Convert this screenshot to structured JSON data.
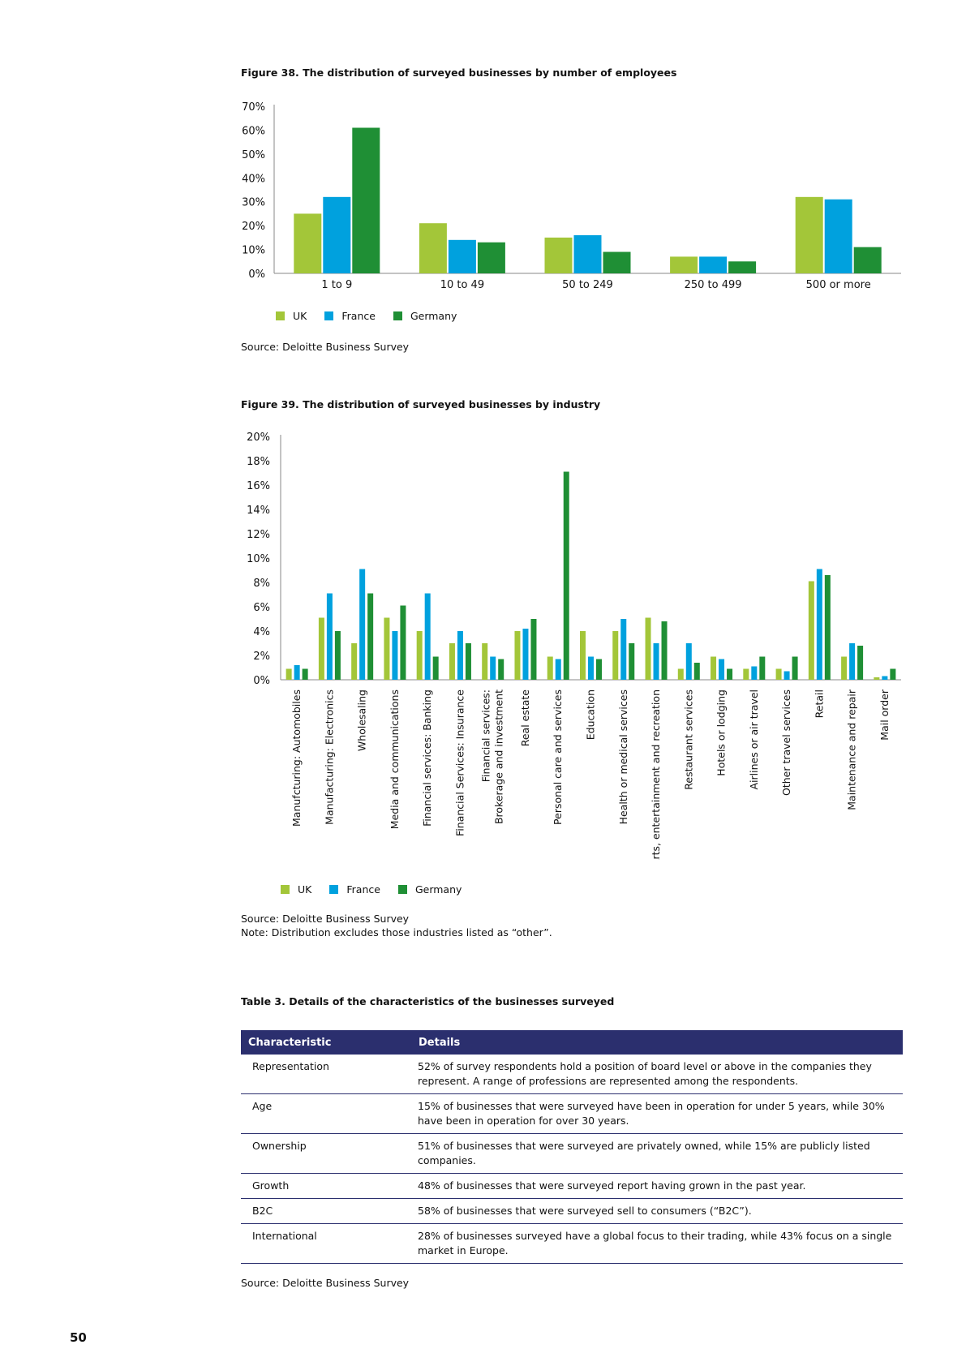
{
  "fig38": {
    "title": "Figure 38. The distribution of surveyed businesses by number of employees",
    "source": "Source: Deloitte Business Survey"
  },
  "fig39": {
    "title": "Figure 39. The distribution of surveyed businesses by industry",
    "source": "Source: Deloitte Business Survey",
    "note": "Note: Distribution excludes those industries listed as “other”."
  },
  "legend": {
    "uk": "UK",
    "france": "France",
    "germany": "Germany"
  },
  "colors": {
    "uk": "#a3c639",
    "france": "#00a1de",
    "germany": "#1f8f35",
    "axis": "#888888",
    "table_header": "#2b2f6e"
  },
  "chart_data": [
    {
      "type": "bar",
      "categories": [
        "1 to 9",
        "10 to 49",
        "50 to 249",
        "250 to 499",
        "500 or more"
      ],
      "series": [
        {
          "name": "UK",
          "values": [
            25,
            21,
            15,
            7,
            32
          ]
        },
        {
          "name": "France",
          "values": [
            32,
            14,
            16,
            7,
            31
          ]
        },
        {
          "name": "Germany",
          "values": [
            61,
            13,
            9,
            5,
            11
          ]
        }
      ],
      "yticks": [
        "0%",
        "10%",
        "20%",
        "30%",
        "40%",
        "50%",
        "60%",
        "70%"
      ],
      "ylim": [
        0,
        70
      ],
      "legend_position": "bottom-left"
    },
    {
      "type": "bar",
      "categories": [
        [
          "Manufcturing: Automobiles"
        ],
        [
          "Manufacturing: Electronics"
        ],
        [
          "Wholesaling"
        ],
        [
          "Media and communications"
        ],
        [
          "Financial services: Banking"
        ],
        [
          "Financial Services: Insurance"
        ],
        [
          "Financial services:",
          "Brokerage and investment"
        ],
        [
          "Real estate"
        ],
        [
          "Personal care and services"
        ],
        [
          "Education"
        ],
        [
          "Health or medical services"
        ],
        [
          "Arts, entertainment and recreation"
        ],
        [
          "Restaurant services"
        ],
        [
          "Hotels or lodging"
        ],
        [
          "Airlines or air travel"
        ],
        [
          "Other travel services"
        ],
        [
          "Retail"
        ],
        [
          "Maintenance and repair"
        ],
        [
          "Mail order"
        ]
      ],
      "series": [
        {
          "name": "UK",
          "values": [
            0.9,
            5.1,
            3.0,
            5.1,
            4.0,
            3.0,
            3.0,
            4.0,
            1.9,
            4.0,
            4.0,
            5.1,
            0.9,
            1.9,
            0.9,
            0.9,
            8.1,
            1.9,
            0.2
          ]
        },
        {
          "name": "France",
          "values": [
            1.2,
            7.1,
            9.1,
            4.0,
            7.1,
            4.0,
            1.9,
            4.2,
            1.7,
            1.9,
            5.0,
            3.0,
            3.0,
            1.7,
            1.1,
            0.7,
            9.1,
            3.0,
            0.3
          ]
        },
        {
          "name": "Germany",
          "values": [
            0.9,
            4.0,
            7.1,
            6.1,
            1.9,
            3.0,
            1.7,
            5.0,
            17.1,
            1.7,
            3.0,
            4.8,
            1.4,
            0.9,
            1.9,
            1.9,
            8.6,
            2.8,
            0.9
          ]
        }
      ],
      "yticks": [
        "0%",
        "2%",
        "4%",
        "6%",
        "8%",
        "10%",
        "12%",
        "14%",
        "16%",
        "18%",
        "20%"
      ],
      "ylim": [
        0,
        20
      ],
      "legend_position": "bottom-left"
    }
  ],
  "table3": {
    "title": "Table 3. Details of the characteristics of the businesses surveyed",
    "headers": [
      "Characteristic",
      "Details"
    ],
    "rows": [
      [
        "Representation",
        "52% of survey respondents hold a position of board level or above in the companies they represent. A range of professions are represented among the respondents."
      ],
      [
        "Age",
        "15% of businesses that were surveyed have been in operation for under 5 years, while 30% have been in operation for over 30 years."
      ],
      [
        "Ownership",
        "51% of businesses that were surveyed are privately owned, while 15% are publicly listed companies."
      ],
      [
        "Growth",
        "48% of businesses that were surveyed report having grown in the past year."
      ],
      [
        "B2C",
        "58% of businesses that were surveyed sell to consumers (“B2C”)."
      ],
      [
        "International",
        "28% of businesses surveyed have a global focus to their trading, while 43% focus on a single market in Europe."
      ]
    ],
    "source": "Source: Deloitte Business Survey"
  },
  "page_number": "50"
}
